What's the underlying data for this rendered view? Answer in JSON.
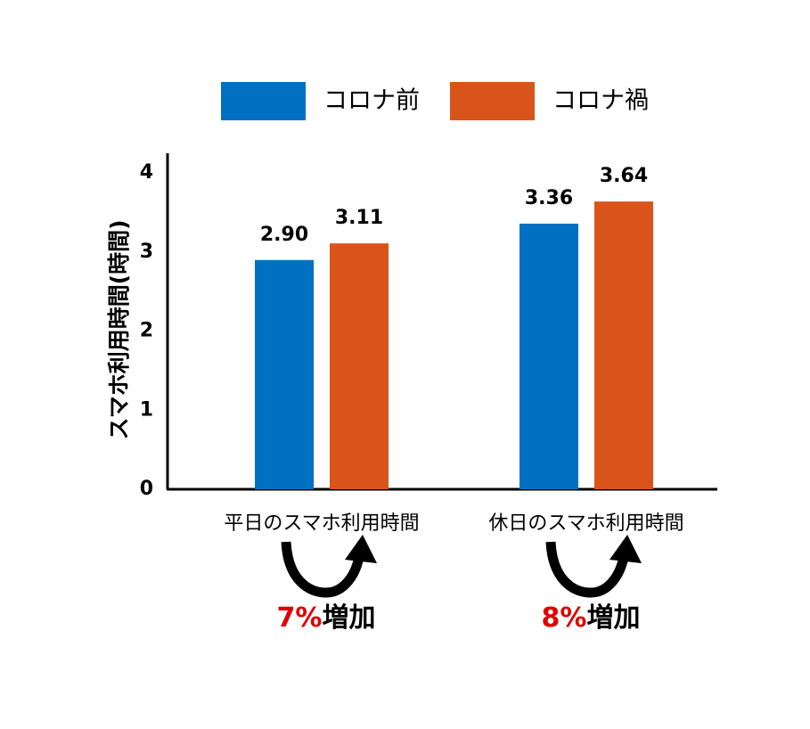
{
  "chart_data": {
    "type": "bar",
    "y_label": "スマホ利用時間(時間)",
    "categories": [
      "平日のスマホ利用時間",
      "休日のスマホ利用時間"
    ],
    "series": [
      {
        "name": "コロナ前",
        "color": "#0070c0",
        "values": [
          2.9,
          3.36
        ],
        "value_labels": [
          "2.90",
          "3.36"
        ]
      },
      {
        "name": "コロナ禍",
        "color": "#d9541a",
        "values": [
          3.11,
          3.64
        ],
        "value_labels": [
          "3.11",
          "3.64"
        ]
      }
    ],
    "ylim": [
      0,
      4.25
    ],
    "yticks": [
      0,
      1,
      2,
      3,
      4
    ],
    "grid": false,
    "annotations": [
      {
        "percent": "7%",
        "text": "増加"
      },
      {
        "percent": "8%",
        "text": "増加"
      }
    ],
    "annotation_color": "#e00000"
  }
}
